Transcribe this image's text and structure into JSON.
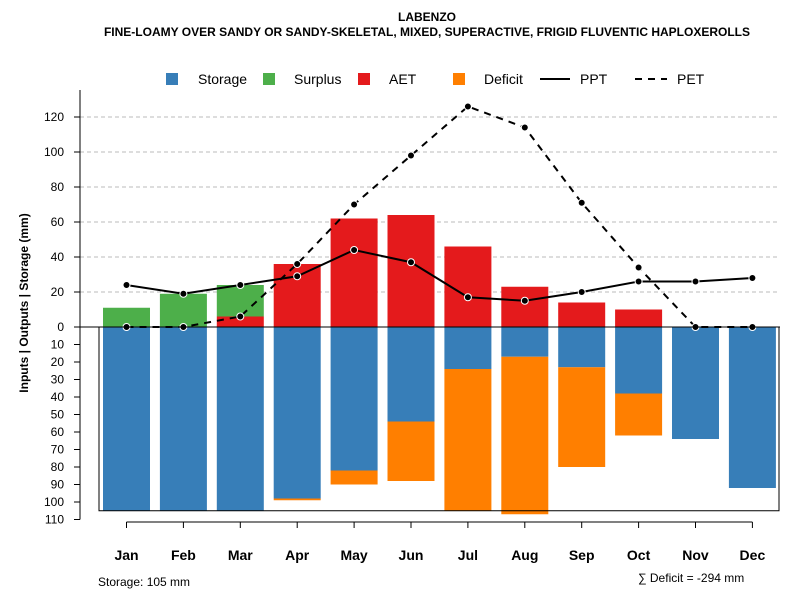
{
  "chart_data": {
    "type": "bar",
    "title": "LABENZO",
    "subtitle": "FINE-LOAMY OVER SANDY OR SANDY-SKELETAL, MIXED, SUPERACTIVE, FRIGID FLUVENTIC HAPLOXEROLLS",
    "ylabel": "Inputs | Outputs | Storage    (mm)",
    "categories": [
      "Jan",
      "Feb",
      "Mar",
      "Apr",
      "May",
      "Jun",
      "Jul",
      "Aug",
      "Sep",
      "Oct",
      "Nov",
      "Dec"
    ],
    "upper_ticks": [
      "0",
      "20",
      "40",
      "60",
      "80",
      "100",
      "120"
    ],
    "lower_ticks": [
      "10",
      "20",
      "30",
      "40",
      "50",
      "60",
      "70",
      "80",
      "90",
      "100",
      "110"
    ],
    "legend": [
      "Storage",
      "Surplus",
      "AET",
      "Deficit",
      "PPT",
      "PET"
    ],
    "colors": {
      "storage": "#377EB8",
      "surplus": "#4DAF4A",
      "aet": "#E41A1C",
      "deficit": "#FF7F00"
    },
    "series": [
      {
        "name": "Surplus",
        "values": [
          11,
          19,
          18,
          0,
          0,
          0,
          0,
          0,
          0,
          0,
          0,
          0
        ]
      },
      {
        "name": "AET",
        "values": [
          0,
          0,
          6,
          36,
          62,
          64,
          46,
          23,
          14,
          10,
          0,
          0
        ]
      },
      {
        "name": "Storage",
        "values": [
          105,
          105,
          105,
          98,
          82,
          54,
          24,
          17,
          23,
          38,
          64,
          92
        ]
      },
      {
        "name": "Deficit",
        "values": [
          0,
          0,
          0,
          1,
          8,
          34,
          81,
          90,
          57,
          24,
          0,
          0
        ]
      },
      {
        "name": "PPT",
        "values": [
          24,
          19,
          24,
          29,
          44,
          37,
          17,
          15,
          20,
          26,
          26,
          28
        ]
      },
      {
        "name": "PET",
        "values": [
          0,
          0,
          6,
          36,
          70,
          98,
          126,
          114,
          71,
          34,
          0,
          0
        ]
      }
    ],
    "storage_capacity": 105,
    "footer_storage": "Storage: 105 mm",
    "footer_deficit": "∑ Deficit = -294 mm"
  }
}
